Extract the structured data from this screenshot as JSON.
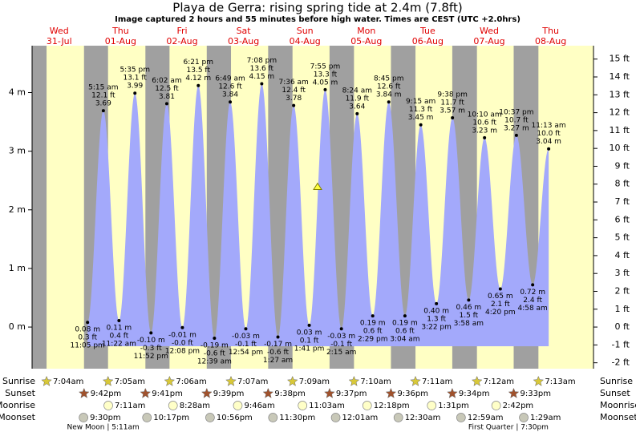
{
  "chart_data": {
    "type": "tide",
    "title": "Playa de Gerra: rising  spring tide at 2.4m (7.8ft)",
    "subtitle": "Image captured 2 hours and 55 minutes before high water. Times are CEST (UTC +2.0hrs)",
    "row_labels": [
      "Sunrise",
      "Sunset",
      "Moonrise",
      "Moonset"
    ],
    "ylim": [
      -0.71,
      4.8
    ],
    "yticks": [
      {
        "value": 0,
        "label": "0 m"
      },
      {
        "value": 1,
        "label": "1 m"
      },
      {
        "value": 2,
        "label": "2 m"
      },
      {
        "value": 3,
        "label": "3 m"
      },
      {
        "value": 4,
        "label": "4 m"
      }
    ],
    "y2lim": [
      -2.33,
      15.75
    ],
    "y2ticks": [
      {
        "value": -2,
        "label": "-2 ft"
      },
      {
        "value": -1,
        "label": "-1 ft"
      },
      {
        "value": 0,
        "label": "0 ft"
      },
      {
        "value": 1,
        "label": "1 ft"
      },
      {
        "value": 2,
        "label": "2 ft"
      },
      {
        "value": 3,
        "label": "3 ft"
      },
      {
        "value": 4,
        "label": "4 ft"
      },
      {
        "value": 5,
        "label": "5 ft"
      },
      {
        "value": 6,
        "label": "6 ft"
      },
      {
        "value": 7,
        "label": "7 ft"
      },
      {
        "value": 8,
        "label": "8 ft"
      },
      {
        "value": 9,
        "label": "9 ft"
      },
      {
        "value": 10,
        "label": "10 ft"
      },
      {
        "value": 11,
        "label": "11 ft"
      },
      {
        "value": 12,
        "label": "12 ft"
      },
      {
        "value": 13,
        "label": "13 ft"
      },
      {
        "value": 14,
        "label": "14 ft"
      },
      {
        "value": 15,
        "label": "15 ft"
      }
    ],
    "current_height": 2.4,
    "color": "#a3a9fb",
    "days": [
      {
        "weekday": "Wed",
        "date": "31-Jul",
        "sunrise": "7:04am",
        "sunset": "9:42pm",
        "moonrise": null,
        "moonset": "9:30pm",
        "phase": null,
        "tides": [
          {
            "time": "11:05 pm",
            "value": 0.08,
            "value_label": "0.08 m",
            "ft": 0.3,
            "ft_label": "0.3 ft"
          }
        ]
      },
      {
        "weekday": "Thu",
        "date": "01-Aug",
        "sunrise": "7:05am",
        "sunset": "9:41pm",
        "moonrise": "7:11am",
        "moonset": "10:17pm",
        "phase": "New Moon | 5:11am",
        "tides": [
          {
            "time": "5:15 am",
            "value": 3.69,
            "value_label": "3.69",
            "ft": 12.1,
            "ft_label": "12.1 ft"
          },
          {
            "time": "11:22 am",
            "value": 0.11,
            "value_label": "0.11 m",
            "ft": 0.4,
            "ft_label": "0.4 ft"
          },
          {
            "time": "5:35 pm",
            "value": 3.99,
            "value_label": "3.99",
            "ft": 13.1,
            "ft_label": "13.1 ft"
          },
          {
            "time": "11:52 pm",
            "value": -0.1,
            "value_label": "-0.10 m",
            "ft": -0.3,
            "ft_label": "-0.3 ft"
          }
        ]
      },
      {
        "weekday": "Fri",
        "date": "02-Aug",
        "sunrise": "7:06am",
        "sunset": "9:39pm",
        "moonrise": "8:28am",
        "moonset": "10:56pm",
        "phase": null,
        "tides": [
          {
            "time": "6:02 am",
            "value": 3.81,
            "value_label": "3.81",
            "ft": 12.5,
            "ft_label": "12.5 ft"
          },
          {
            "time": "12:08 pm",
            "value": -0.01,
            "value_label": "-0.01 m",
            "ft": -0.0,
            "ft_label": "-0.0 ft"
          },
          {
            "time": "6:21 pm",
            "value": 4.12,
            "value_label": "4.12 m",
            "ft": 13.5,
            "ft_label": "13.5 ft"
          }
        ]
      },
      {
        "weekday": "Sat",
        "date": "03-Aug",
        "sunrise": "7:07am",
        "sunset": "9:38pm",
        "moonrise": "9:46am",
        "moonset": "11:30pm",
        "phase": null,
        "tides": [
          {
            "time": "12:39 am",
            "value": -0.19,
            "value_label": "-0.19 m",
            "ft": -0.6,
            "ft_label": "-0.6 ft"
          },
          {
            "time": "6:49 am",
            "value": 3.84,
            "value_label": "3.84",
            "ft": 12.6,
            "ft_label": "12.6 ft"
          },
          {
            "time": "12:54 pm",
            "value": -0.03,
            "value_label": "-0.03 m",
            "ft": -0.1,
            "ft_label": "-0.1 ft"
          },
          {
            "time": "7:08 pm",
            "value": 4.15,
            "value_label": "4.15 m",
            "ft": 13.6,
            "ft_label": "13.6 ft"
          }
        ]
      },
      {
        "weekday": "Sun",
        "date": "04-Aug",
        "sunrise": "7:09am",
        "sunset": "9:37pm",
        "moonrise": "11:03am",
        "moonset": null,
        "phase": null,
        "tides": [
          {
            "time": "1:27 am",
            "value": -0.17,
            "value_label": "-0.17 m",
            "ft": -0.6,
            "ft_label": "-0.6 ft"
          },
          {
            "time": "7:36 am",
            "value": 3.78,
            "value_label": "3.78",
            "ft": 12.4,
            "ft_label": "12.4 ft"
          },
          {
            "time": "1:41 pm",
            "value": 0.03,
            "value_label": "0.03 m",
            "ft": 0.1,
            "ft_label": "0.1 ft"
          },
          {
            "time": "7:55 pm",
            "value": 4.05,
            "value_label": "4.05 m",
            "ft": 13.3,
            "ft_label": "13.3 ft"
          }
        ]
      },
      {
        "weekday": "Mon",
        "date": "05-Aug",
        "sunrise": "7:10am",
        "sunset": "9:36pm",
        "moonrise": "12:18pm",
        "moonset": "12:01am",
        "phase": null,
        "tides": [
          {
            "time": "2:15 am",
            "value": -0.03,
            "value_label": "-0.03 m",
            "ft": -0.1,
            "ft_label": "-0.1 ft"
          },
          {
            "time": "8:24 am",
            "value": 3.64,
            "value_label": "3.64",
            "ft": 11.9,
            "ft_label": "11.9 ft"
          },
          {
            "time": "2:29 pm",
            "value": 0.19,
            "value_label": "0.19 m",
            "ft": 0.6,
            "ft_label": "0.6 ft"
          },
          {
            "time": "8:45 pm",
            "value": 3.84,
            "value_label": "3.84 m",
            "ft": 12.6,
            "ft_label": "12.6 ft"
          }
        ]
      },
      {
        "weekday": "Tue",
        "date": "06-Aug",
        "sunrise": "7:11am",
        "sunset": "9:34pm",
        "moonrise": "1:31pm",
        "moonset": "12:30am",
        "phase": null,
        "tides": [
          {
            "time": "3:04 am",
            "value": 0.19,
            "value_label": "0.19 m",
            "ft": 0.6,
            "ft_label": "0.6 ft"
          },
          {
            "time": "9:15 am",
            "value": 3.45,
            "value_label": "3.45 m",
            "ft": 11.3,
            "ft_label": "11.3 ft"
          },
          {
            "time": "3:22 pm",
            "value": 0.4,
            "value_label": "0.40 m",
            "ft": 1.3,
            "ft_label": "1.3 ft"
          },
          {
            "time": "9:38 pm",
            "value": 3.57,
            "value_label": "3.57 m",
            "ft": 11.7,
            "ft_label": "11.7 ft"
          }
        ]
      },
      {
        "weekday": "Wed",
        "date": "07-Aug",
        "sunrise": "7:12am",
        "sunset": "9:33pm",
        "moonrise": "2:42pm",
        "moonset": "12:59am",
        "phase": "First Quarter | 7:30pm",
        "tides": [
          {
            "time": "3:58 am",
            "value": 0.46,
            "value_label": "0.46 m",
            "ft": 1.5,
            "ft_label": "1.5 ft"
          },
          {
            "time": "10:10 am",
            "value": 3.23,
            "value_label": "3.23 m",
            "ft": 10.6,
            "ft_label": "10.6 ft"
          },
          {
            "time": "4:20 pm",
            "value": 0.65,
            "value_label": "0.65 m",
            "ft": 2.1,
            "ft_label": "2.1 ft"
          },
          {
            "time": "10:37 pm",
            "value": 3.27,
            "value_label": "3.27 m",
            "ft": 10.7,
            "ft_label": "10.7 ft"
          }
        ]
      },
      {
        "weekday": "Thu",
        "date": "08-Aug",
        "sunrise": "7:13am",
        "sunset": null,
        "moonrise": null,
        "moonset": "1:29am",
        "phase": null,
        "tides": [
          {
            "time": "4:58 am",
            "value": 0.72,
            "value_label": "0.72 m",
            "ft": 2.4,
            "ft_label": "2.4 ft"
          },
          {
            "time": "11:13 am",
            "value": 3.04,
            "value_label": "3.04 m",
            "ft": 10.0,
            "ft_label": "10.0 ft"
          }
        ]
      }
    ]
  }
}
